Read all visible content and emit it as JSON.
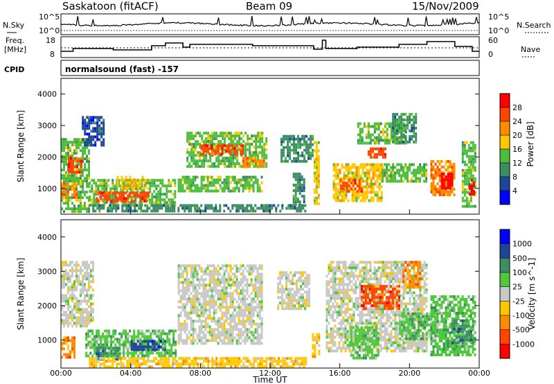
{
  "header": {
    "station": "Saskatoon (fitACF)",
    "beam": "Beam 09",
    "date": "15/Nov/2009"
  },
  "labels": {
    "nsky": "N.Sky",
    "freq_line1": "Freq.",
    "freq_line2": "[MHz]",
    "cpid": "CPID",
    "nsearch": "N.Search",
    "nave": "Nave",
    "program": "normalsound (fast) -157"
  },
  "panels": {
    "noise": {
      "left_ticks": [
        "10^5",
        "10^0"
      ],
      "right_ticks": [
        "10^5",
        "10^0"
      ]
    },
    "freq": {
      "left_ticks": [
        "18",
        "8"
      ],
      "right_ticks": [
        "60",
        "0"
      ]
    }
  },
  "chart_data": [
    {
      "type": "heatmap",
      "title": "",
      "xlabel": "",
      "ylabel": "Slant Range [km]",
      "quantity": "Power",
      "colorbar_label": "Power [dB]",
      "colorbar_ticks": [
        "28",
        "24",
        "20",
        "16",
        "12",
        "8",
        "4"
      ],
      "colorbar_colors": [
        "#ff0000",
        "#ff4500",
        "#ff8c00",
        "#ffc800",
        "#4cbe3c",
        "#3c8c64",
        "#1e4696",
        "#0000ff"
      ],
      "y_ticks": [
        "4000",
        "3000",
        "2000",
        "1000"
      ],
      "ylim": [
        180,
        4500
      ],
      "xlim_hours": [
        0,
        24
      ],
      "regions": [
        {
          "t0": 0.0,
          "t1": 1.6,
          "r0": 300,
          "r1": 2600,
          "level": 3
        },
        {
          "t0": 0.4,
          "t1": 1.2,
          "r0": 1500,
          "r1": 2000,
          "level": 6
        },
        {
          "t0": 0.0,
          "t1": 0.9,
          "r0": 700,
          "r1": 1200,
          "level": 5
        },
        {
          "t0": 1.2,
          "t1": 2.4,
          "r0": 2400,
          "r1": 3300,
          "level": 1
        },
        {
          "t0": 1.6,
          "t1": 6.6,
          "r0": 500,
          "r1": 1300,
          "level": 3
        },
        {
          "t0": 2.0,
          "t1": 5.0,
          "r0": 600,
          "r1": 900,
          "level": 6
        },
        {
          "t0": 3.2,
          "t1": 4.8,
          "r0": 1000,
          "r1": 1400,
          "level": 4
        },
        {
          "t0": 1.8,
          "t1": 14.0,
          "r0": 250,
          "r1": 500,
          "level": 2
        },
        {
          "t0": 6.7,
          "t1": 11.5,
          "r0": 900,
          "r1": 1400,
          "level": 3
        },
        {
          "t0": 7.2,
          "t1": 11.8,
          "r0": 1700,
          "r1": 2800,
          "level": 3
        },
        {
          "t0": 8.0,
          "t1": 10.4,
          "r0": 2100,
          "r1": 2400,
          "level": 6
        },
        {
          "t0": 10.4,
          "t1": 11.6,
          "r0": 1700,
          "r1": 2000,
          "level": 5
        },
        {
          "t0": 12.6,
          "t1": 14.4,
          "r0": 1900,
          "r1": 2700,
          "level": 2
        },
        {
          "t0": 13.3,
          "t1": 14.0,
          "r0": 500,
          "r1": 1500,
          "level": 2
        },
        {
          "t0": 14.5,
          "t1": 14.8,
          "r0": 500,
          "r1": 2500,
          "level": 4
        },
        {
          "t0": 15.6,
          "t1": 18.4,
          "r0": 600,
          "r1": 1800,
          "level": 4
        },
        {
          "t0": 16.0,
          "t1": 17.2,
          "r0": 900,
          "r1": 1300,
          "level": 6
        },
        {
          "t0": 17.0,
          "t1": 19.8,
          "r0": 2400,
          "r1": 3100,
          "level": 3
        },
        {
          "t0": 17.6,
          "t1": 18.6,
          "r0": 2000,
          "r1": 2300,
          "level": 6
        },
        {
          "t0": 18.4,
          "t1": 21.0,
          "r0": 1200,
          "r1": 1800,
          "level": 3
        },
        {
          "t0": 19.0,
          "t1": 20.4,
          "r0": 2500,
          "r1": 3400,
          "level": 2
        },
        {
          "t0": 21.2,
          "t1": 22.6,
          "r0": 800,
          "r1": 1900,
          "level": 5
        },
        {
          "t0": 21.8,
          "t1": 22.4,
          "r0": 1000,
          "r1": 1500,
          "level": 7
        },
        {
          "t0": 23.0,
          "t1": 23.8,
          "r0": 400,
          "r1": 2500,
          "level": 3
        },
        {
          "t0": 23.4,
          "t1": 23.7,
          "r0": 800,
          "r1": 1300,
          "level": 7
        }
      ]
    },
    {
      "type": "heatmap",
      "title": "",
      "xlabel": "Time UT",
      "ylabel": "Slant Range [km]",
      "quantity": "Velocity",
      "colorbar_label": "Velocity [m s^-1]",
      "colorbar_ticks": [
        "1000",
        "500",
        "100",
        "25",
        "-25",
        "-100",
        "-500",
        "-1000"
      ],
      "colorbar_colors": [
        "#0000ff",
        "#1e4696",
        "#3c8c64",
        "#50c83c",
        "#c8c8c8",
        "#ffc800",
        "#ff8c00",
        "#ff4500",
        "#ff0000"
      ],
      "y_ticks": [
        "4000",
        "3000",
        "2000",
        "1000"
      ],
      "x_ticks": [
        "00:00",
        "04:00",
        "08:00",
        "12:00",
        "16:00",
        "20:00",
        "00:00"
      ],
      "ylim": [
        180,
        4500
      ],
      "xlim_hours": [
        0,
        24
      ],
      "regions": [
        {
          "t0": 0.0,
          "t1": 1.8,
          "r0": 1400,
          "r1": 3300,
          "level": 4
        },
        {
          "t0": 0.0,
          "t1": 0.8,
          "r0": 500,
          "r1": 1100,
          "level": 6
        },
        {
          "t0": 1.4,
          "t1": 6.6,
          "r0": 500,
          "r1": 1300,
          "level": 3
        },
        {
          "t0": 2.0,
          "t1": 3.4,
          "r0": 400,
          "r1": 800,
          "level": 2
        },
        {
          "t0": 4.0,
          "t1": 6.0,
          "r0": 700,
          "r1": 1000,
          "level": 1
        },
        {
          "t0": 1.6,
          "t1": 14.0,
          "r0": 250,
          "r1": 500,
          "level": 5
        },
        {
          "t0": 6.7,
          "t1": 11.5,
          "r0": 900,
          "r1": 3200,
          "level": 4
        },
        {
          "t0": 12.4,
          "t1": 14.3,
          "r0": 1900,
          "r1": 3000,
          "level": 4
        },
        {
          "t0": 14.4,
          "t1": 14.8,
          "r0": 500,
          "r1": 1200,
          "level": 5
        },
        {
          "t0": 15.2,
          "t1": 21.0,
          "r0": 700,
          "r1": 3300,
          "level": 4
        },
        {
          "t0": 17.2,
          "t1": 19.4,
          "r0": 1900,
          "r1": 2600,
          "level": 7
        },
        {
          "t0": 19.6,
          "t1": 20.6,
          "r0": 2500,
          "r1": 3300,
          "level": 6
        },
        {
          "t0": 16.6,
          "t1": 18.2,
          "r0": 500,
          "r1": 1400,
          "level": 3
        },
        {
          "t0": 19.4,
          "t1": 21.6,
          "r0": 1000,
          "r1": 1800,
          "level": 3
        },
        {
          "t0": 21.2,
          "t1": 23.8,
          "r0": 600,
          "r1": 2300,
          "level": 3
        },
        {
          "t0": 22.4,
          "t1": 23.6,
          "r0": 900,
          "r1": 1600,
          "level": 2
        }
      ]
    }
  ]
}
